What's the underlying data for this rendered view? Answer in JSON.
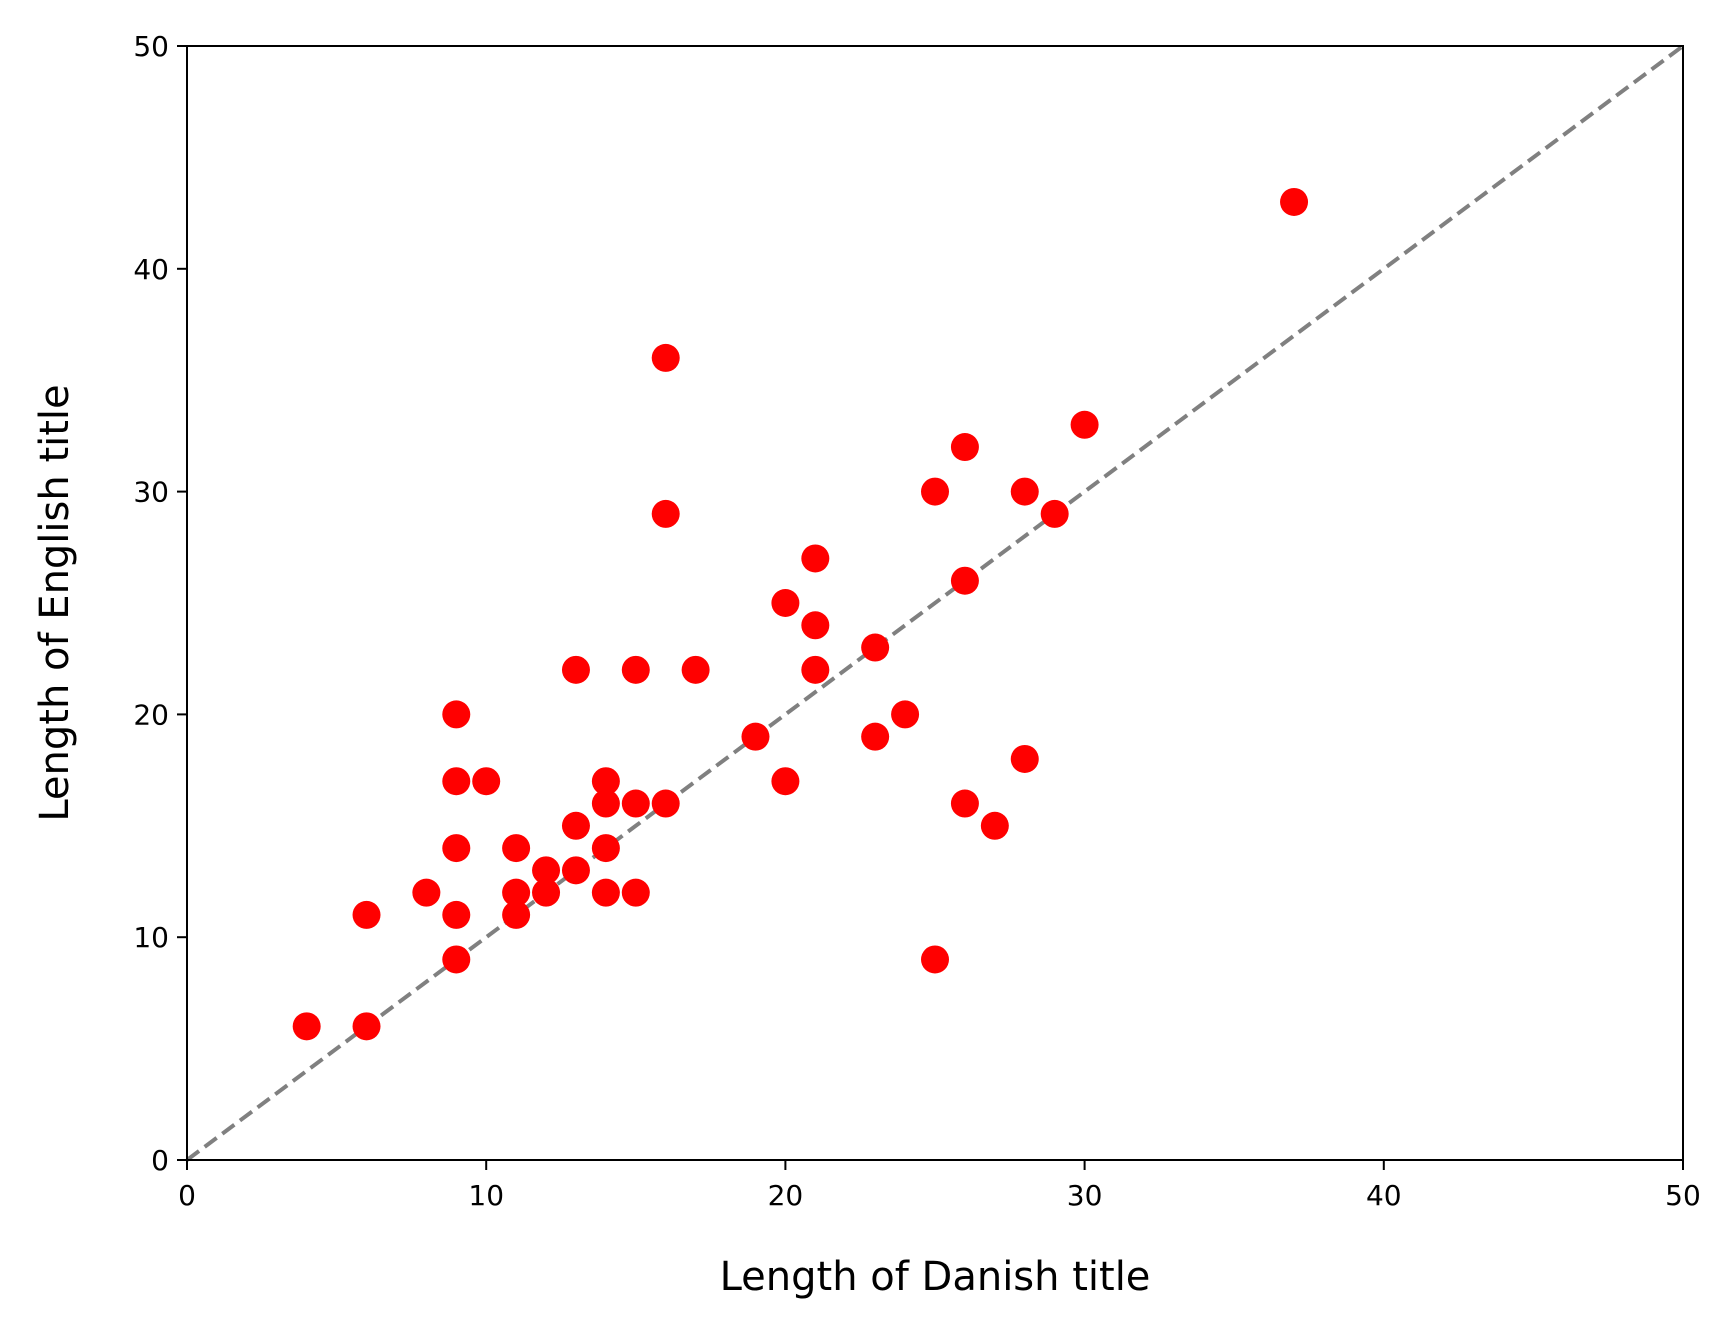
{
  "chart_data": {
    "type": "scatter",
    "title": "",
    "xlabel": "Length of Danish title",
    "ylabel": "Length of English title",
    "xlim": [
      0,
      50
    ],
    "ylim": [
      0,
      50
    ],
    "xticks": [
      "0",
      "10",
      "20",
      "30",
      "40",
      "50"
    ],
    "yticks": [
      "0",
      "10",
      "20",
      "30",
      "40",
      "50"
    ],
    "grid": false,
    "legend": "none",
    "marker_color": "#ff0000",
    "reference_line": {
      "style": "dashed",
      "color": "#808080",
      "from": [
        0,
        0
      ],
      "to": [
        50,
        50
      ]
    },
    "series": [
      {
        "points": [
          [
            4,
            6
          ],
          [
            6,
            6
          ],
          [
            6,
            11
          ],
          [
            8,
            12
          ],
          [
            9,
            9
          ],
          [
            9,
            11
          ],
          [
            9,
            14
          ],
          [
            9,
            17
          ],
          [
            9,
            20
          ],
          [
            10,
            17
          ],
          [
            11,
            11
          ],
          [
            11,
            12
          ],
          [
            11,
            14
          ],
          [
            12,
            12
          ],
          [
            12,
            13
          ],
          [
            13,
            13
          ],
          [
            13,
            15
          ],
          [
            13,
            22
          ],
          [
            14,
            12
          ],
          [
            14,
            14
          ],
          [
            14,
            16
          ],
          [
            14,
            17
          ],
          [
            15,
            12
          ],
          [
            15,
            16
          ],
          [
            15,
            22
          ],
          [
            16,
            16
          ],
          [
            16,
            29
          ],
          [
            16,
            36
          ],
          [
            17,
            22
          ],
          [
            19,
            19
          ],
          [
            20,
            17
          ],
          [
            20,
            25
          ],
          [
            21,
            22
          ],
          [
            21,
            24
          ],
          [
            21,
            27
          ],
          [
            23,
            19
          ],
          [
            23,
            23
          ],
          [
            24,
            20
          ],
          [
            25,
            9
          ],
          [
            25,
            30
          ],
          [
            26,
            16
          ],
          [
            26,
            26
          ],
          [
            26,
            32
          ],
          [
            27,
            15
          ],
          [
            28,
            18
          ],
          [
            28,
            30
          ],
          [
            29,
            29
          ],
          [
            30,
            33
          ],
          [
            37,
            43
          ]
        ]
      }
    ]
  }
}
